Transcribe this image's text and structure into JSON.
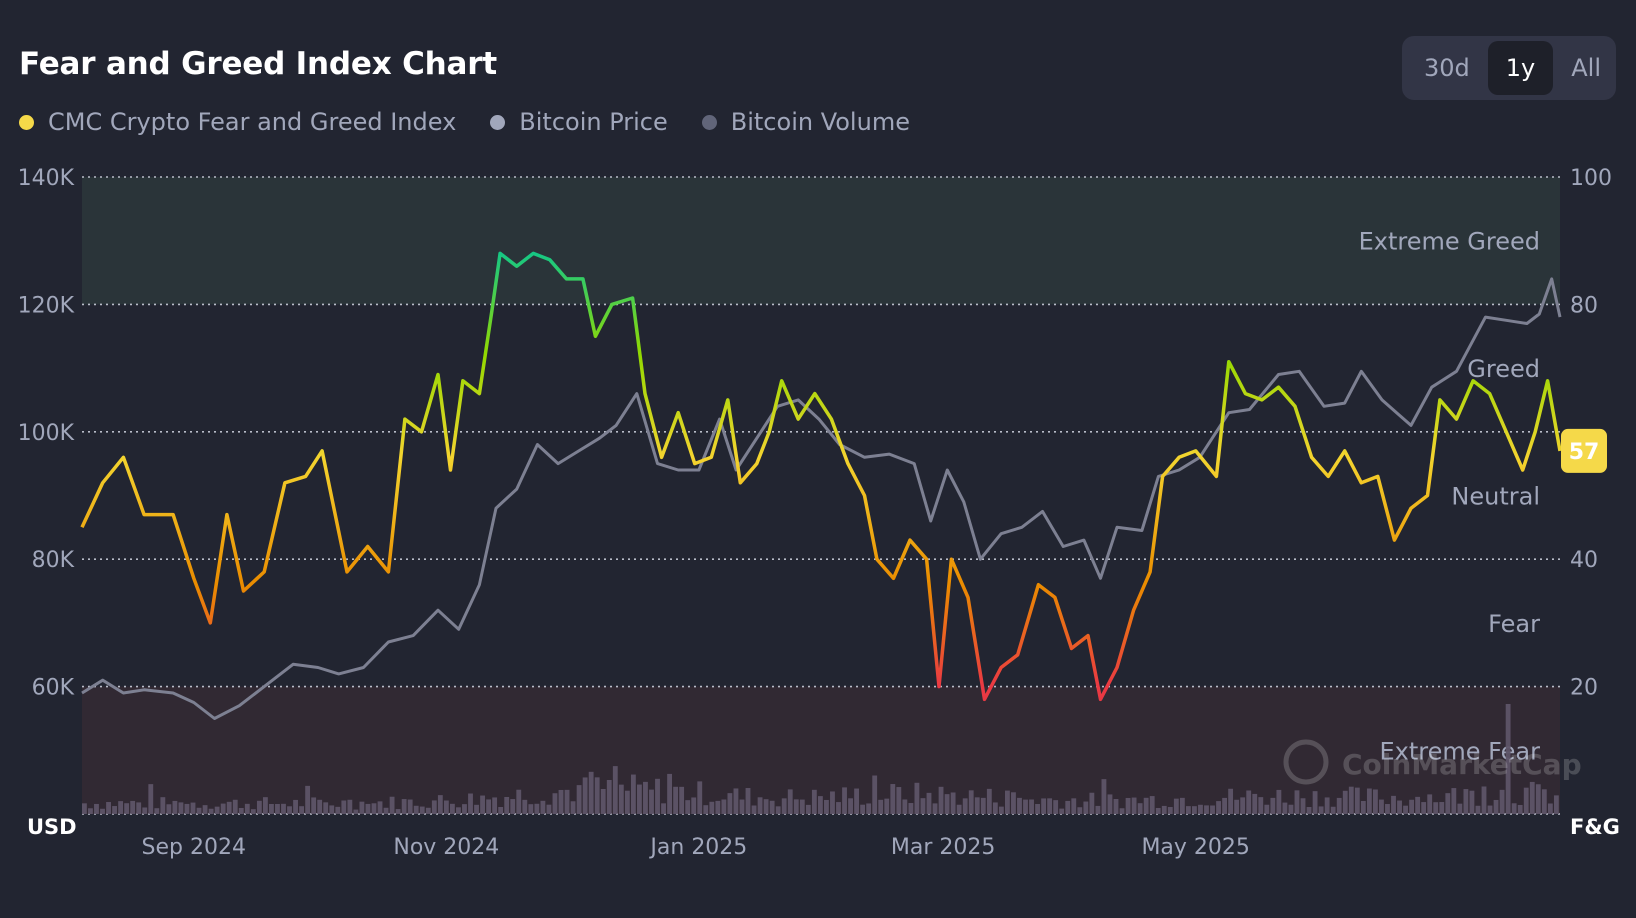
{
  "header": {
    "title": "Fear and Greed Index Chart",
    "ranges": [
      "30d",
      "1y",
      "All"
    ],
    "active_range": "1y"
  },
  "legend": [
    {
      "label": "CMC Crypto Fear and Greed Index",
      "color": "#f5d949"
    },
    {
      "label": "Bitcoin Price",
      "color": "#a1a7bb"
    },
    {
      "label": "Bitcoin Volume",
      "color": "#616579"
    }
  ],
  "watermark": "CoinMarketCap",
  "chart_data": {
    "type": "line",
    "left_axis": {
      "label": "USD",
      "ticks": [
        "140K",
        "120K",
        "100K",
        "80K",
        "60K"
      ],
      "tick_values": [
        140000,
        120000,
        100000,
        80000,
        60000
      ],
      "range": [
        40000,
        140000
      ]
    },
    "right_axis": {
      "label": "F&G",
      "ticks": [
        "100",
        "80",
        "40",
        "20"
      ],
      "tick_values": [
        100,
        80,
        40,
        20
      ],
      "range": [
        0,
        100
      ]
    },
    "x_ticks": [
      {
        "label": "Sep 2024",
        "date": "2024-09-01"
      },
      {
        "label": "Nov 2024",
        "date": "2024-11-01"
      },
      {
        "label": "Jan 2025",
        "date": "2025-01-01"
      },
      {
        "label": "Mar 2025",
        "date": "2025-03-01"
      },
      {
        "label": "May 2025",
        "date": "2025-05-01"
      }
    ],
    "x_range": [
      "2024-08-05",
      "2025-07-28"
    ],
    "zones": [
      {
        "label": "Extreme Greed",
        "from": 80,
        "to": 100,
        "color": "#2a3439"
      },
      {
        "label": "Greed",
        "from": 60,
        "to": 80
      },
      {
        "label": "Neutral",
        "from": 40,
        "to": 60
      },
      {
        "label": "Fear",
        "from": 20,
        "to": 40
      },
      {
        "label": "Extreme Fear",
        "from": 0,
        "to": 20,
        "color": "#312933"
      }
    ],
    "current_value": "57",
    "fear_greed": {
      "name": "CMC Crypto Fear and Greed Index",
      "points": [
        [
          "2024-08-05",
          45
        ],
        [
          "2024-08-10",
          52
        ],
        [
          "2024-08-15",
          56
        ],
        [
          "2024-08-20",
          47
        ],
        [
          "2024-08-27",
          47
        ],
        [
          "2024-09-01",
          37
        ],
        [
          "2024-09-05",
          30
        ],
        [
          "2024-09-09",
          47
        ],
        [
          "2024-09-13",
          35
        ],
        [
          "2024-09-18",
          38
        ],
        [
          "2024-09-23",
          52
        ],
        [
          "2024-09-28",
          53
        ],
        [
          "2024-10-02",
          57
        ],
        [
          "2024-10-08",
          38
        ],
        [
          "2024-10-13",
          42
        ],
        [
          "2024-10-18",
          38
        ],
        [
          "2024-10-22",
          62
        ],
        [
          "2024-10-26",
          60
        ],
        [
          "2024-10-30",
          69
        ],
        [
          "2024-11-02",
          54
        ],
        [
          "2024-11-05",
          68
        ],
        [
          "2024-11-09",
          66
        ],
        [
          "2024-11-12",
          79
        ],
        [
          "2024-11-14",
          88
        ],
        [
          "2024-11-18",
          86
        ],
        [
          "2024-11-22",
          88
        ],
        [
          "2024-11-26",
          87
        ],
        [
          "2024-11-30",
          84
        ],
        [
          "2024-12-04",
          84
        ],
        [
          "2024-12-07",
          75
        ],
        [
          "2024-12-11",
          80
        ],
        [
          "2024-12-16",
          81
        ],
        [
          "2024-12-19",
          66
        ],
        [
          "2024-12-23",
          56
        ],
        [
          "2024-12-27",
          63
        ],
        [
          "2024-12-31",
          55
        ],
        [
          "2025-01-04",
          56
        ],
        [
          "2025-01-08",
          65
        ],
        [
          "2025-01-11",
          52
        ],
        [
          "2025-01-15",
          55
        ],
        [
          "2025-01-18",
          60
        ],
        [
          "2025-01-21",
          68
        ],
        [
          "2025-01-25",
          62
        ],
        [
          "2025-01-29",
          66
        ],
        [
          "2025-02-02",
          62
        ],
        [
          "2025-02-06",
          55
        ],
        [
          "2025-02-10",
          50
        ],
        [
          "2025-02-13",
          40
        ],
        [
          "2025-02-17",
          37
        ],
        [
          "2025-02-21",
          43
        ],
        [
          "2025-02-25",
          40
        ],
        [
          "2025-02-28",
          20
        ],
        [
          "2025-03-03",
          40
        ],
        [
          "2025-03-07",
          34
        ],
        [
          "2025-03-11",
          18
        ],
        [
          "2025-03-15",
          23
        ],
        [
          "2025-03-19",
          25
        ],
        [
          "2025-03-24",
          36
        ],
        [
          "2025-03-28",
          34
        ],
        [
          "2025-04-01",
          26
        ],
        [
          "2025-04-05",
          28
        ],
        [
          "2025-04-08",
          18
        ],
        [
          "2025-04-12",
          23
        ],
        [
          "2025-04-16",
          32
        ],
        [
          "2025-04-20",
          38
        ],
        [
          "2025-04-23",
          53
        ],
        [
          "2025-04-27",
          56
        ],
        [
          "2025-05-01",
          57
        ],
        [
          "2025-05-06",
          53
        ],
        [
          "2025-05-09",
          71
        ],
        [
          "2025-05-13",
          66
        ],
        [
          "2025-05-17",
          65
        ],
        [
          "2025-05-21",
          67
        ],
        [
          "2025-05-25",
          64
        ],
        [
          "2025-05-29",
          56
        ],
        [
          "2025-06-02",
          53
        ],
        [
          "2025-06-06",
          57
        ],
        [
          "2025-06-10",
          52
        ],
        [
          "2025-06-14",
          53
        ],
        [
          "2025-06-18",
          43
        ],
        [
          "2025-06-22",
          48
        ],
        [
          "2025-06-26",
          50
        ],
        [
          "2025-06-29",
          65
        ],
        [
          "2025-07-03",
          62
        ],
        [
          "2025-07-07",
          68
        ],
        [
          "2025-07-11",
          66
        ],
        [
          "2025-07-15",
          60
        ],
        [
          "2025-07-19",
          54
        ],
        [
          "2025-07-22",
          60
        ],
        [
          "2025-07-25",
          68
        ],
        [
          "2025-07-28",
          57
        ]
      ]
    },
    "bitcoin_price": {
      "name": "Bitcoin Price",
      "points": [
        [
          "2024-08-05",
          59000
        ],
        [
          "2024-08-10",
          61000
        ],
        [
          "2024-08-15",
          59000
        ],
        [
          "2024-08-20",
          59500
        ],
        [
          "2024-08-27",
          59000
        ],
        [
          "2024-09-01",
          57500
        ],
        [
          "2024-09-06",
          55000
        ],
        [
          "2024-09-12",
          57000
        ],
        [
          "2024-09-18",
          60000
        ],
        [
          "2024-09-25",
          63500
        ],
        [
          "2024-10-01",
          63000
        ],
        [
          "2024-10-06",
          62000
        ],
        [
          "2024-10-12",
          63000
        ],
        [
          "2024-10-18",
          67000
        ],
        [
          "2024-10-24",
          68000
        ],
        [
          "2024-10-30",
          72000
        ],
        [
          "2024-11-04",
          69000
        ],
        [
          "2024-11-09",
          76000
        ],
        [
          "2024-11-13",
          88000
        ],
        [
          "2024-11-18",
          91000
        ],
        [
          "2024-11-23",
          98000
        ],
        [
          "2024-11-28",
          95000
        ],
        [
          "2024-12-03",
          97000
        ],
        [
          "2024-12-08",
          99000
        ],
        [
          "2024-12-12",
          101000
        ],
        [
          "2024-12-17",
          106000
        ],
        [
          "2024-12-22",
          95000
        ],
        [
          "2024-12-27",
          94000
        ],
        [
          "2025-01-01",
          94000
        ],
        [
          "2025-01-06",
          102000
        ],
        [
          "2025-01-10",
          94000
        ],
        [
          "2025-01-15",
          99000
        ],
        [
          "2025-01-20",
          104000
        ],
        [
          "2025-01-25",
          105000
        ],
        [
          "2025-01-30",
          102000
        ],
        [
          "2025-02-04",
          98000
        ],
        [
          "2025-02-10",
          96000
        ],
        [
          "2025-02-16",
          96500
        ],
        [
          "2025-02-22",
          95000
        ],
        [
          "2025-02-26",
          86000
        ],
        [
          "2025-03-02",
          94000
        ],
        [
          "2025-03-06",
          89000
        ],
        [
          "2025-03-10",
          80000
        ],
        [
          "2025-03-15",
          84000
        ],
        [
          "2025-03-20",
          85000
        ],
        [
          "2025-03-25",
          87500
        ],
        [
          "2025-03-30",
          82000
        ],
        [
          "2025-04-04",
          83000
        ],
        [
          "2025-04-08",
          77000
        ],
        [
          "2025-04-12",
          85000
        ],
        [
          "2025-04-18",
          84500
        ],
        [
          "2025-04-22",
          93000
        ],
        [
          "2025-04-27",
          94000
        ],
        [
          "2025-05-02",
          96000
        ],
        [
          "2025-05-09",
          103000
        ],
        [
          "2025-05-14",
          103500
        ],
        [
          "2025-05-21",
          109000
        ],
        [
          "2025-05-26",
          109500
        ],
        [
          "2025-06-01",
          104000
        ],
        [
          "2025-06-06",
          104500
        ],
        [
          "2025-06-10",
          109500
        ],
        [
          "2025-06-15",
          105000
        ],
        [
          "2025-06-22",
          101000
        ],
        [
          "2025-06-27",
          107000
        ],
        [
          "2025-07-03",
          109500
        ],
        [
          "2025-07-10",
          118000
        ],
        [
          "2025-07-15",
          117500
        ],
        [
          "2025-07-20",
          117000
        ],
        [
          "2025-07-23",
          118500
        ],
        [
          "2025-07-26",
          124000
        ],
        [
          "2025-07-28",
          118000
        ]
      ]
    }
  }
}
